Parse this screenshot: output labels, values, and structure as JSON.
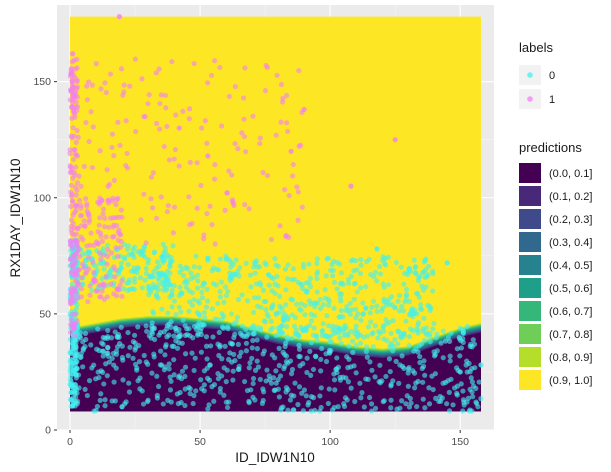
{
  "chart_data": {
    "type": "heatmap",
    "xlabel": "ID_IDW1N10",
    "ylabel": "RX1DAY_IDW1N10",
    "xlim": [
      -5,
      163
    ],
    "ylim": [
      0,
      183
    ],
    "x_ticks": [
      0,
      50,
      100,
      150
    ],
    "y_ticks": [
      0,
      50,
      100,
      150
    ],
    "grid": true,
    "legend_position": "right",
    "labels_legend": {
      "title": "labels",
      "entries": [
        {
          "label": "0",
          "color": "#42f0f0"
        },
        {
          "label": "1",
          "color": "#f47ef4"
        }
      ]
    },
    "predictions_legend": {
      "title": "predictions",
      "entries": [
        {
          "label": "(0.0, 0.1]",
          "color": "#440154"
        },
        {
          "label": "(0.1, 0.2]",
          "color": "#482878"
        },
        {
          "label": "(0.2, 0.3]",
          "color": "#3e4a89"
        },
        {
          "label": "(0.3, 0.4]",
          "color": "#31688e"
        },
        {
          "label": "(0.4, 0.5]",
          "color": "#26828e"
        },
        {
          "label": "(0.5, 0.6]",
          "color": "#1f9e89"
        },
        {
          "label": "(0.6, 0.7]",
          "color": "#35b779"
        },
        {
          "label": "(0.7, 0.8]",
          "color": "#6ece58"
        },
        {
          "label": "(0.8, 0.9]",
          "color": "#b5de2b"
        },
        {
          "label": "(0.9, 1.0]",
          "color": "#fde725"
        }
      ]
    },
    "prediction_surface": {
      "x_range": [
        0,
        158
      ],
      "y_range": [
        8,
        178
      ],
      "background_level": "(0.9, 1.0]",
      "low_region_boundary": [
        [
          0,
          40
        ],
        [
          10,
          42
        ],
        [
          20,
          44
        ],
        [
          30,
          45
        ],
        [
          40,
          45
        ],
        [
          50,
          44
        ],
        [
          60,
          43
        ],
        [
          70,
          40
        ],
        [
          80,
          37
        ],
        [
          90,
          35
        ],
        [
          100,
          34
        ],
        [
          110,
          32
        ],
        [
          120,
          31
        ],
        [
          130,
          32
        ],
        [
          140,
          36
        ],
        [
          150,
          40
        ],
        [
          158,
          42
        ]
      ]
    },
    "series": [
      {
        "name": "0",
        "color": "#42f0f0",
        "clusters": [
          {
            "x_range": [
              0,
              3
            ],
            "y_range": [
              10,
              82
            ],
            "count": 220
          },
          {
            "x_range": [
              2,
              40
            ],
            "y_range": [
              60,
              80
            ],
            "count": 160
          },
          {
            "x_range": [
              30,
              140
            ],
            "y_range": [
              40,
              75
            ],
            "count": 520
          },
          {
            "x_range": [
              0,
              158
            ],
            "y_range": [
              8,
              45
            ],
            "count": 620
          }
        ],
        "points": [
          [
            145,
            72
          ],
          [
            158,
            28
          ],
          [
            150,
            25
          ],
          [
            118,
            78
          ],
          [
            20,
            10
          ]
        ]
      },
      {
        "name": "1",
        "color": "#f47ef4",
        "clusters": [
          {
            "x_range": [
              0,
              3
            ],
            "y_range": [
              40,
              160
            ],
            "count": 160
          },
          {
            "x_range": [
              2,
              20
            ],
            "y_range": [
              55,
              100
            ],
            "count": 120
          },
          {
            "x_range": [
              2,
              90
            ],
            "y_range": [
              80,
              160
            ],
            "count": 170
          }
        ],
        "points": [
          [
            19,
            178
          ],
          [
            1,
            162
          ],
          [
            53,
            118
          ],
          [
            85,
            120
          ],
          [
            108,
            105
          ],
          [
            125,
            125
          ],
          [
            90,
            138
          ],
          [
            42,
            130
          ]
        ]
      }
    ]
  }
}
